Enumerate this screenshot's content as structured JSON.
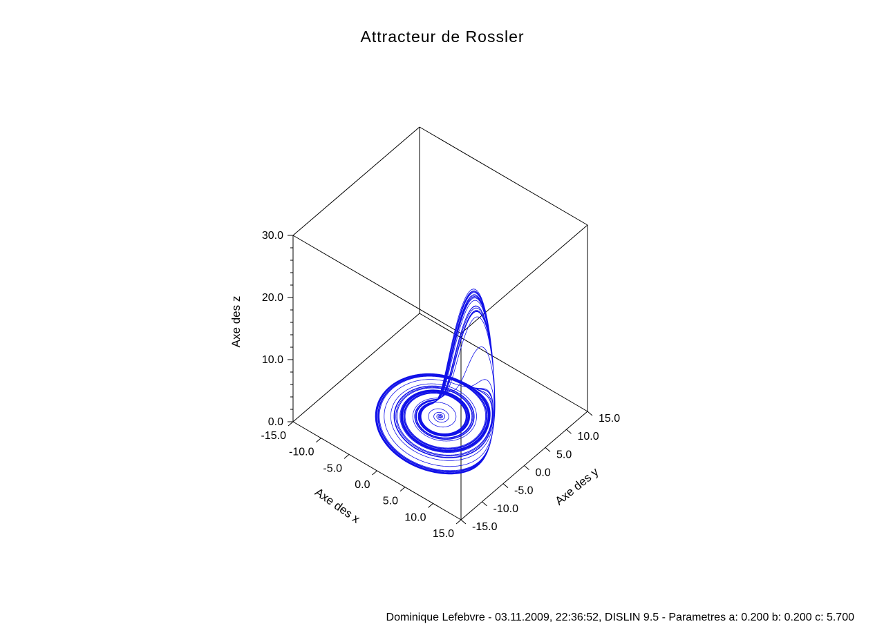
{
  "chart_data": {
    "type": "line",
    "projection": "3d",
    "title": "Attracteur de Rossler",
    "xlabel": "Axe des x",
    "ylabel": "Axe des y",
    "zlabel": "Axe des z",
    "xlim": [
      -15,
      15
    ],
    "ylim": [
      -15,
      15
    ],
    "zlim": [
      0,
      30
    ],
    "x_ticks": [
      "-15.0",
      "-10.0",
      "-5.0",
      "0.0",
      "5.0",
      "10.0",
      "15.0"
    ],
    "y_ticks": [
      "-15.0",
      "-10.0",
      "-5.0",
      "0.0",
      "5.0",
      "10.0",
      "15.0"
    ],
    "z_ticks": [
      "0.0",
      "10.0",
      "20.0",
      "30.0"
    ],
    "grid": false,
    "series": [
      {
        "color": "#1010e8",
        "system": "rossler",
        "params": {
          "a": 0.2,
          "b": 0.2,
          "c": 5.7
        },
        "initial": [
          0.1,
          0.0,
          0.0
        ]
      }
    ],
    "footer": "Dominique Lefebvre -  03.11.2009, 22:36:52, DISLIN 9.5  -  Parametres a: 0.200  b: 0.200  c: 5.700"
  },
  "colors": {
    "trajectory": "#1010e8",
    "axes": "#000000",
    "background": "#ffffff"
  }
}
